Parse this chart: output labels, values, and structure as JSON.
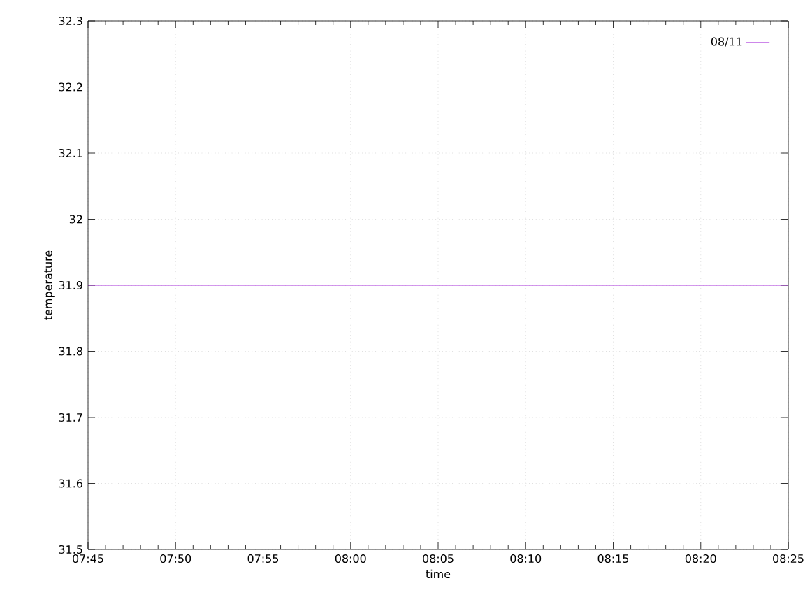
{
  "chart_data": {
    "type": "line",
    "xlabel": "time",
    "ylabel": "temperature",
    "series": [
      {
        "name": "08/11",
        "color": "#9400d3",
        "x": [
          7.75,
          8.416666666666666
        ],
        "values": [
          31.9,
          31.9
        ]
      }
    ],
    "xlim": [
      7.75,
      8.416666666666666
    ],
    "xticks": [
      {
        "value": 7.75,
        "label": "07:45"
      },
      {
        "value": 7.833333333333333,
        "label": "07:50"
      },
      {
        "value": 7.916666666666667,
        "label": "07:55"
      },
      {
        "value": 8.0,
        "label": "08:00"
      },
      {
        "value": 8.083333333333332,
        "label": "08:05"
      },
      {
        "value": 8.166666666666666,
        "label": "08:10"
      },
      {
        "value": 8.25,
        "label": "08:15"
      },
      {
        "value": 8.333333333333332,
        "label": "08:20"
      },
      {
        "value": 8.416666666666666,
        "label": "08:25"
      }
    ],
    "ylim": [
      31.5,
      32.3
    ],
    "yticks": [
      31.5,
      31.6,
      31.7,
      31.8,
      31.9,
      32,
      32.1,
      32.2,
      32.3
    ],
    "grid": true,
    "legend": "top right",
    "marker": "none",
    "line_style": "solid"
  }
}
